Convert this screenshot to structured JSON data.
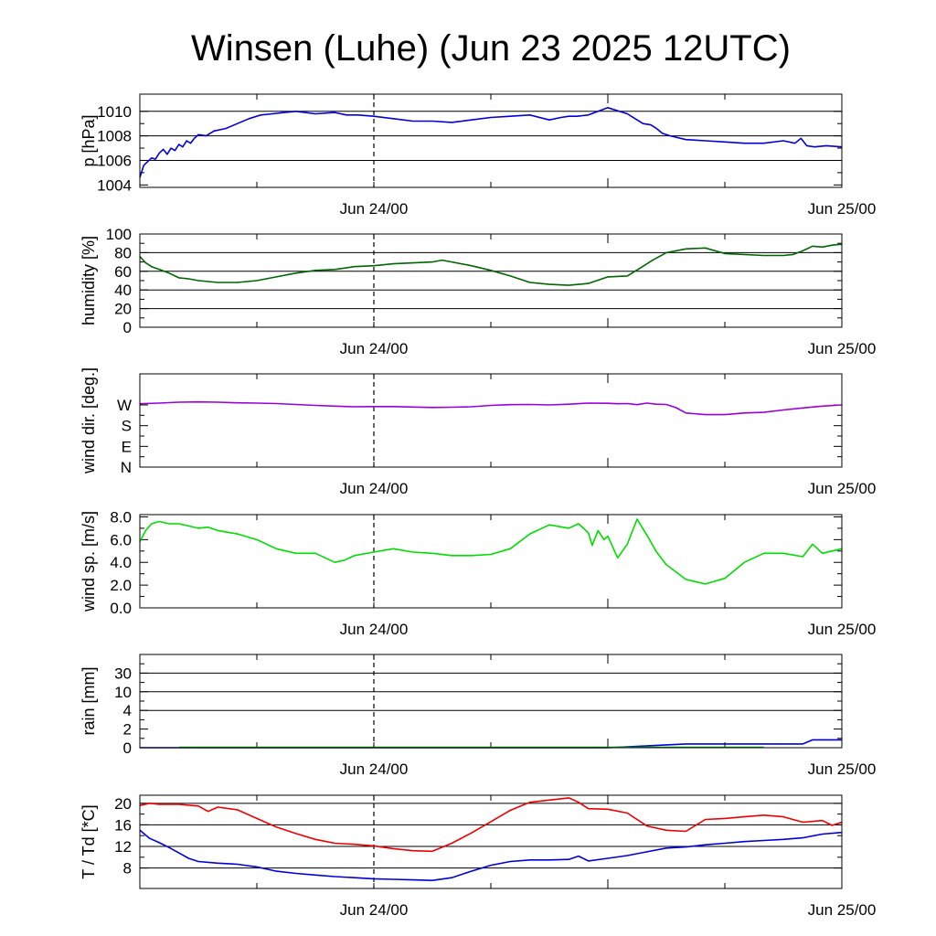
{
  "title": "Winsen (Luhe) (Jun 23 2025 12UTC)",
  "time_axis": {
    "start": "2025-06-23 12:00 UTC",
    "end": "2025-06-25 00:00 UTC",
    "hours_span": 36,
    "labels": [
      {
        "hour": 12,
        "text": "Jun 24/00"
      },
      {
        "hour": 36,
        "text": "Jun 25/00"
      }
    ],
    "dashed_marker_hour": 12
  },
  "chart_data": [
    {
      "type": "line",
      "ylabel": "p [hPa]",
      "ylim": [
        1003.8,
        1011.4
      ],
      "yticks": [
        1004,
        1006,
        1008,
        1010
      ],
      "ytick_labels": [
        "1004",
        "1006",
        "1008",
        "1010"
      ],
      "grid": [
        1006,
        1008,
        1010
      ],
      "series": [
        {
          "color": "#0000dd",
          "x": [
            0,
            0.2,
            0.4,
            0.6,
            0.8,
            1.0,
            1.2,
            1.4,
            1.6,
            1.8,
            2.0,
            2.2,
            2.4,
            2.6,
            2.8,
            3.0,
            3.4,
            3.8,
            4.4,
            5.0,
            5.6,
            6.2,
            6.8,
            7.4,
            8.0,
            9.0,
            10.0,
            10.6,
            11.2,
            12.0,
            13.0,
            14.0,
            15.0,
            16.0,
            17.0,
            18.0,
            19.0,
            20.0,
            21.0,
            21.6,
            22.0,
            22.4,
            23.0,
            24.0,
            25.0,
            25.8,
            26.2,
            26.5,
            26.8,
            27.2,
            28.0,
            29.0,
            30.0,
            31.0,
            32.0,
            33.0,
            33.6,
            33.9,
            34.2,
            34.6,
            35.2,
            36.0
          ],
          "values": [
            1004.6,
            1005.6,
            1005.9,
            1006.2,
            1006.1,
            1006.6,
            1006.9,
            1006.5,
            1007.0,
            1006.8,
            1007.3,
            1007.1,
            1007.6,
            1007.4,
            1007.8,
            1008.1,
            1008.0,
            1008.4,
            1008.6,
            1009.0,
            1009.4,
            1009.7,
            1009.8,
            1009.9,
            1010.0,
            1009.8,
            1009.9,
            1009.7,
            1009.7,
            1009.6,
            1009.4,
            1009.2,
            1009.2,
            1009.1,
            1009.3,
            1009.5,
            1009.6,
            1009.7,
            1009.3,
            1009.5,
            1009.6,
            1009.6,
            1009.7,
            1010.3,
            1009.8,
            1009.0,
            1008.9,
            1008.6,
            1008.2,
            1008.0,
            1007.7,
            1007.6,
            1007.5,
            1007.4,
            1007.4,
            1007.6,
            1007.4,
            1007.8,
            1007.2,
            1007.1,
            1007.2,
            1007.1
          ]
        }
      ]
    },
    {
      "type": "line",
      "ylabel": "humidity [%]",
      "ylim": [
        0,
        100
      ],
      "yticks": [
        0,
        20,
        40,
        60,
        80,
        100
      ],
      "ytick_labels": [
        "0",
        "20",
        "40",
        "60",
        "80",
        "100"
      ],
      "grid": [
        20,
        40,
        60,
        80
      ],
      "series": [
        {
          "color": "#006600",
          "x": [
            0,
            0.3,
            0.6,
            1.0,
            1.5,
            2.0,
            2.5,
            3.0,
            3.5,
            4.0,
            5.0,
            6.0,
            7.0,
            8.0,
            9.0,
            10.0,
            11.0,
            12.0,
            13.0,
            14.0,
            15.0,
            15.5,
            16.0,
            17.0,
            18.0,
            19.0,
            20.0,
            21.0,
            22.0,
            23.0,
            24.0,
            25.0,
            25.7,
            26.3,
            27.0,
            28.0,
            29.0,
            30.0,
            31.0,
            32.0,
            33.0,
            33.5,
            34.0,
            34.5,
            35.0,
            35.5,
            36.0
          ],
          "values": [
            76,
            69,
            65,
            62,
            58,
            53,
            52,
            50,
            49,
            48,
            48,
            50,
            54,
            58,
            61,
            62,
            65,
            66,
            68,
            69,
            70,
            72,
            70,
            66,
            61,
            55,
            48,
            46,
            45,
            47,
            54,
            55,
            64,
            72,
            80,
            84,
            85,
            79,
            78,
            77,
            77,
            78,
            82,
            87,
            86,
            88,
            89
          ]
        }
      ]
    },
    {
      "type": "line",
      "ylabel": "wind dir. [deg.]",
      "ylim": [
        0,
        405
      ],
      "yticks": [
        0,
        90,
        180,
        270
      ],
      "ytick_labels": [
        "N",
        "E",
        "S",
        "W"
      ],
      "grid": [],
      "series": [
        {
          "color": "#9900dd",
          "x": [
            0,
            1,
            2,
            3,
            4,
            5,
            6,
            7,
            8,
            9,
            10,
            11,
            12,
            13,
            14,
            15,
            16,
            17,
            18,
            19,
            20,
            21,
            22,
            23,
            24,
            24.5,
            25,
            25.5,
            26,
            26.5,
            27,
            27.5,
            28,
            29,
            30,
            31,
            32,
            33,
            34,
            35,
            36
          ],
          "values": [
            275,
            278,
            282,
            283,
            282,
            279,
            278,
            276,
            272,
            268,
            265,
            262,
            263,
            263,
            261,
            259,
            260,
            262,
            268,
            271,
            272,
            270,
            273,
            278,
            277,
            275,
            276,
            271,
            278,
            273,
            272,
            258,
            235,
            228,
            228,
            235,
            238,
            248,
            257,
            265,
            270
          ]
        }
      ]
    },
    {
      "type": "line",
      "ylabel": "wind sp. [m/s]",
      "ylim": [
        0,
        8.2
      ],
      "yticks": [
        0.0,
        2.0,
        4.0,
        6.0,
        8.0
      ],
      "ytick_labels": [
        "0.0",
        "2.0",
        "4.0",
        "6.0",
        "8.0"
      ],
      "grid": [],
      "series": [
        {
          "color": "#00dd00",
          "x": [
            0,
            0.3,
            0.6,
            1.0,
            1.5,
            2.0,
            2.5,
            3.0,
            3.5,
            4.0,
            5.0,
            6.0,
            7.0,
            8.0,
            9.0,
            10.0,
            10.5,
            11.0,
            12.0,
            13.0,
            14.0,
            15.0,
            16.0,
            17.0,
            18.0,
            19.0,
            20.0,
            21.0,
            22.0,
            22.5,
            23.0,
            23.2,
            23.5,
            23.8,
            24.0,
            24.5,
            25.0,
            25.5,
            26.0,
            26.5,
            27.0,
            28.0,
            29.0,
            30.0,
            31.0,
            32.0,
            33.0,
            34.0,
            34.5,
            35.0,
            35.5,
            36.0
          ],
          "values": [
            5.8,
            6.8,
            7.4,
            7.6,
            7.4,
            7.4,
            7.2,
            7.0,
            7.1,
            6.8,
            6.5,
            6.0,
            5.2,
            4.8,
            4.8,
            4.0,
            4.2,
            4.6,
            4.9,
            5.2,
            4.9,
            4.8,
            4.6,
            4.6,
            4.7,
            5.2,
            6.5,
            7.3,
            7.0,
            7.4,
            6.6,
            5.5,
            6.8,
            6.0,
            6.3,
            4.4,
            5.6,
            7.8,
            6.4,
            4.9,
            3.8,
            2.5,
            2.1,
            2.6,
            4.0,
            4.8,
            4.8,
            4.5,
            5.6,
            4.8,
            5.0,
            5.2
          ]
        }
      ]
    },
    {
      "type": "line",
      "ylabel": "rain [mm]",
      "ylim": [
        0,
        5
      ],
      "yticks": [
        0,
        1,
        2,
        3,
        4,
        5
      ],
      "ytick_labels": [
        "0",
        "2",
        "4",
        "10",
        "30",
        ""
      ],
      "grid": [
        2,
        3,
        4
      ],
      "series": [
        {
          "color": "#0000dd",
          "x": [
            0,
            24.0,
            25.0,
            27.0,
            28.0,
            34.0,
            34.5,
            35.0,
            36.0
          ],
          "values": [
            0,
            0,
            0.05,
            0.15,
            0.2,
            0.2,
            0.42,
            0.42,
            0.42
          ]
        },
        {
          "color": "#00aa00",
          "x": [
            2.0,
            32.0
          ],
          "values": [
            0.02,
            0.02
          ]
        }
      ]
    },
    {
      "type": "line",
      "ylabel": "T / Td [*C]",
      "ylim": [
        4.2,
        21.5
      ],
      "yticks": [
        8,
        12,
        16,
        20
      ],
      "ytick_labels": [
        "8",
        "12",
        "16",
        "20"
      ],
      "grid": [
        8,
        12,
        16,
        20
      ],
      "series": [
        {
          "color": "#ee0000",
          "x": [
            0,
            0.5,
            1.0,
            2.0,
            3.0,
            3.5,
            4.0,
            5.0,
            6.0,
            7.0,
            8.0,
            9.0,
            10.0,
            11.0,
            12.0,
            13.0,
            14.0,
            15.0,
            16.0,
            17.0,
            18.0,
            19.0,
            20.0,
            21.0,
            22.0,
            22.5,
            23.0,
            24.0,
            25.0,
            26.0,
            27.0,
            28.0,
            29.0,
            30.0,
            31.0,
            32.0,
            33.0,
            34.0,
            35.0,
            35.5,
            36.0
          ],
          "values": [
            19.6,
            20.0,
            19.8,
            19.8,
            19.5,
            18.5,
            19.3,
            18.8,
            17.2,
            15.6,
            14.4,
            13.3,
            12.6,
            12.4,
            12.1,
            11.6,
            11.2,
            11.1,
            12.6,
            14.5,
            16.6,
            18.7,
            20.2,
            20.6,
            21.0,
            20.2,
            19.0,
            18.9,
            18.2,
            15.8,
            15.0,
            14.8,
            17.0,
            17.2,
            17.5,
            17.8,
            17.5,
            16.5,
            16.8,
            15.9,
            16.5
          ]
        },
        {
          "color": "#0000dd",
          "x": [
            0,
            0.5,
            1.0,
            1.5,
            2.0,
            2.5,
            3.0,
            4.0,
            5.0,
            6.0,
            7.0,
            8.0,
            9.0,
            10.0,
            11.0,
            12.0,
            13.0,
            14.0,
            15.0,
            16.0,
            17.0,
            18.0,
            19.0,
            20.0,
            21.0,
            22.0,
            22.5,
            23.0,
            24.0,
            25.0,
            26.0,
            27.0,
            28.0,
            29.0,
            30.0,
            31.0,
            32.0,
            33.0,
            34.0,
            35.0,
            36.0
          ],
          "values": [
            15.0,
            13.5,
            12.7,
            11.8,
            10.8,
            9.8,
            9.2,
            8.9,
            8.7,
            8.2,
            7.4,
            7.0,
            6.7,
            6.4,
            6.2,
            6.0,
            5.9,
            5.8,
            5.7,
            6.2,
            7.4,
            8.5,
            9.2,
            9.5,
            9.5,
            9.6,
            10.2,
            9.3,
            9.8,
            10.3,
            11.0,
            11.7,
            11.9,
            12.3,
            12.6,
            12.9,
            13.1,
            13.3,
            13.6,
            14.3,
            14.6
          ]
        }
      ]
    }
  ]
}
